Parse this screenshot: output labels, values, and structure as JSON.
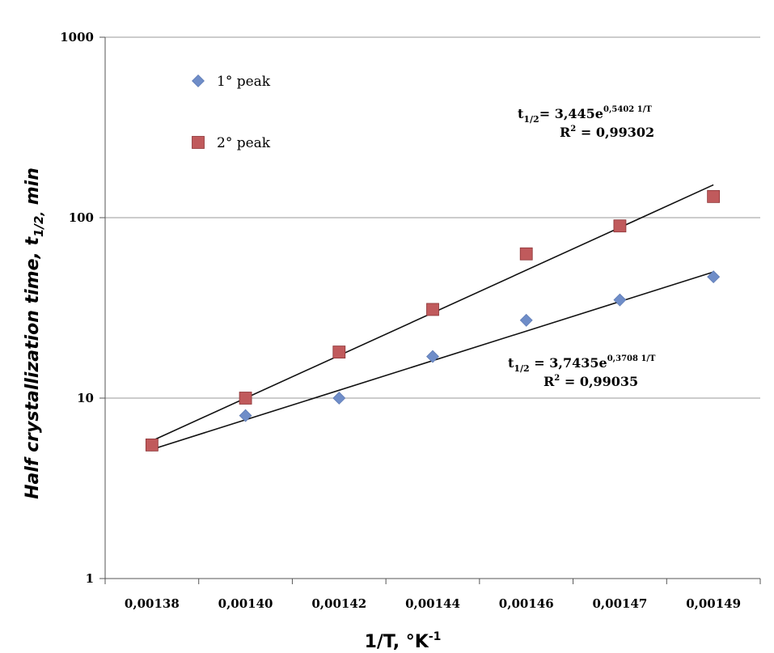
{
  "chart_data": {
    "type": "scatter",
    "title": "",
    "xlabel": {
      "main": "1/T, °K",
      "sup": "-1"
    },
    "ylabel": {
      "main": "Half crystallization time, t",
      "sub": "1/2,",
      "after": " min"
    },
    "y_scale": "log",
    "ylim": [
      1,
      1000
    ],
    "y_ticks": [
      "1",
      "10",
      "100",
      "1000"
    ],
    "categories": [
      "0,00138",
      "0,00140",
      "0,00142",
      "0,00144",
      "0,00146",
      "0,00147",
      "0,00149"
    ],
    "grid": "horizontal",
    "legend_position": "top-left",
    "series": [
      {
        "name": "1° peak",
        "marker": "diamond",
        "color": "#6f8dc8",
        "values": [
          5.5,
          8,
          10,
          17,
          27,
          35,
          47
        ]
      },
      {
        "name": "2° peak",
        "marker": "square",
        "color": "#c05a5c",
        "values": [
          5.5,
          10,
          18,
          31,
          63,
          90,
          131
        ]
      }
    ],
    "trendlines": [
      {
        "series": "1° peak",
        "start": 5.2,
        "end": 50,
        "equation": {
          "lhs": "t",
          "lhs_sub": "1/2",
          "rhs": " = 3,7435e",
          "exp": "0,3708 1/T"
        },
        "r2": {
          "label": "R",
          "sup": "2",
          "value": " = 0,99035"
        }
      },
      {
        "series": "2° peak",
        "start": 5.8,
        "end": 152,
        "equation": {
          "lhs": "t",
          "lhs_sub": "1/2",
          "rhs": "= 3,445e",
          "exp": "0,5402 1/T"
        },
        "r2": {
          "label": "R",
          "sup": "2",
          "value": " = 0,99302"
        }
      }
    ]
  }
}
